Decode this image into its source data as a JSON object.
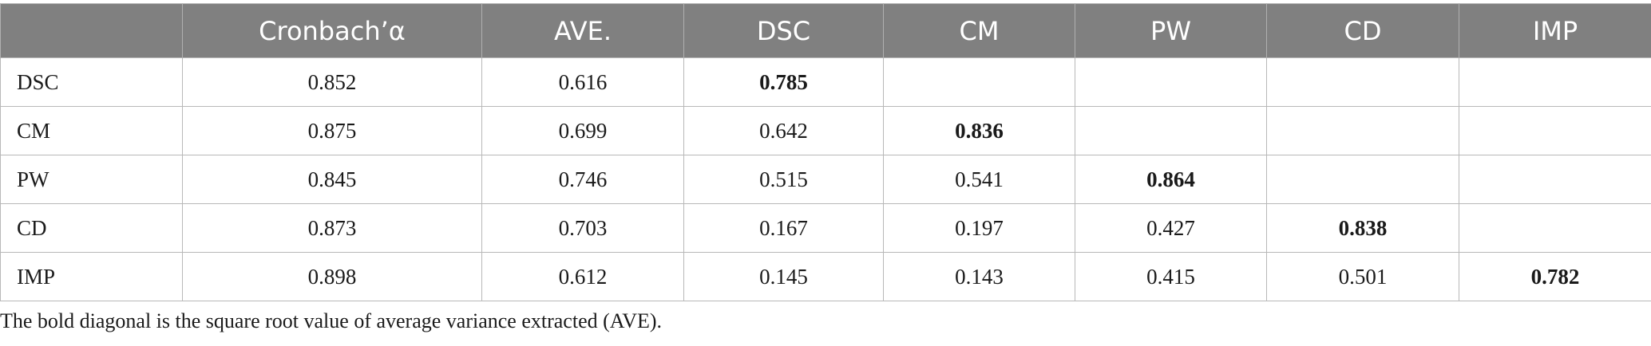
{
  "table": {
    "headers": [
      "",
      "Cronbach’α",
      "AVE.",
      "DSC",
      "CM",
      "PW",
      "CD",
      "IMP"
    ],
    "rows": [
      {
        "label": "DSC",
        "cells": [
          "0.852",
          "0.616",
          "0.785",
          "",
          "",
          "",
          ""
        ],
        "bold_index": 2
      },
      {
        "label": "CM",
        "cells": [
          "0.875",
          "0.699",
          "0.642",
          "0.836",
          "",
          "",
          ""
        ],
        "bold_index": 3
      },
      {
        "label": "PW",
        "cells": [
          "0.845",
          "0.746",
          "0.515",
          "0.541",
          "0.864",
          "",
          ""
        ],
        "bold_index": 4
      },
      {
        "label": "CD",
        "cells": [
          "0.873",
          "0.703",
          "0.167",
          "0.197",
          "0.427",
          "0.838",
          ""
        ],
        "bold_index": 5
      },
      {
        "label": "IMP",
        "cells": [
          "0.898",
          "0.612",
          "0.145",
          "0.143",
          "0.415",
          "0.501",
          "0.782"
        ],
        "bold_index": 6
      }
    ]
  },
  "footnote": "The bold diagonal is the square root value of average variance extracted (AVE).",
  "colors": {
    "header_background": "#808080",
    "header_text": "#ffffff",
    "border": "#b8b8b8"
  }
}
